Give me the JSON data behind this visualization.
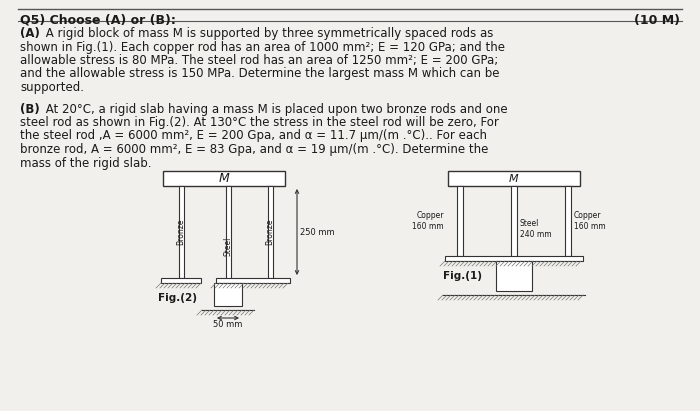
{
  "title": "Q5) Choose (A) or (B):",
  "title_right": "(10 M)",
  "para_A_bold": "(A)",
  "para_A_rest": " A rigid block of mass M is supported by three symmetrically spaced rods as shown in Fig.(1). Each copper rod has an area of 1000 mm²; E = 120 GPa; and the allowable stress is 80 MPa. The steel rod has an area of 1250 mm²; E = 200 GPa; and the allowable stress is 150 MPa. Determine the largest mass M which can be supported.",
  "para_B_bold": "(B)",
  "para_B_rest": " At 20°C, a rigid slab having a mass M is placed upon two bronze rods and one steel rod as shown in Fig.(2). At 130°C the stress in the steel rod will be zero, For the steel rod ,A = 6000 mm², E = 200 Gpa, and α = 11.7 μm/(m .°C).. For each bronze rod, A = 6000 mm², E = 83 Gpa, and α = 19 μm/(m .°C). Determine the mass of the rigid slab.",
  "bg_color": "#f2f0ec",
  "text_color": "#1a1a1a",
  "fig2_labels": [
    "Bronze",
    "Steel",
    "Bronze"
  ],
  "fig2_dim_250": "250 mm",
  "fig2_dim_50": "50 mm",
  "fig2_caption": "Fig.(2)",
  "fig1_caption": "Fig.(1)",
  "fig1_label_left": "Copper\n160 mm",
  "fig1_label_center": "Steel\n240 mm",
  "fig1_label_right": "Copper\n160 mm"
}
